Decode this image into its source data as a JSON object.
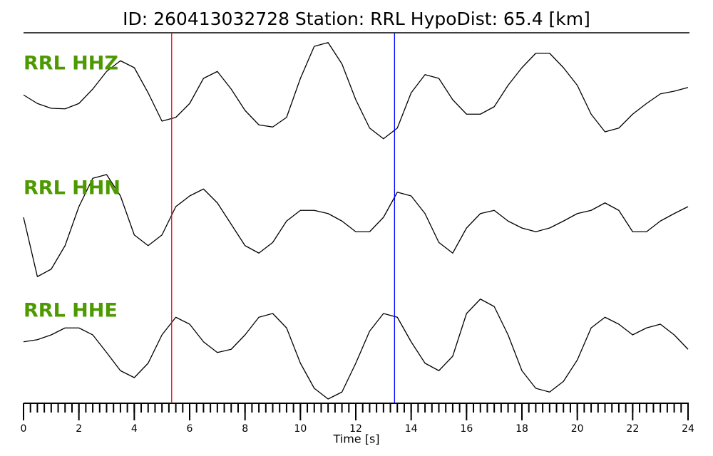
{
  "chart_data": {
    "type": "line",
    "title": "ID: 260413032728   Station: RRL   HypoDist:    65.4 [km]",
    "xlabel": "Time [s]",
    "xlim": [
      0,
      24
    ],
    "xticks": [
      0,
      2,
      4,
      6,
      8,
      10,
      12,
      14,
      16,
      18,
      20,
      22,
      24
    ],
    "xminorticks": [
      0,
      0.25,
      0.5,
      0.75,
      1,
      1.25,
      1.5,
      1.75,
      2,
      2.25,
      2.5,
      2.75,
      3,
      3.25,
      3.5,
      3.75,
      4,
      4.25,
      4.5,
      4.75,
      5,
      5.25,
      5.5,
      5.75,
      6,
      6.25,
      6.5,
      6.75,
      7,
      7.25,
      7.5,
      7.75,
      8,
      8.25,
      8.5,
      8.75,
      9,
      9.25,
      9.5,
      9.75,
      10,
      10.25,
      10.5,
      10.75,
      11,
      11.25,
      11.5,
      11.75,
      12,
      12.25,
      12.5,
      12.75,
      13,
      13.25,
      13.5,
      13.75,
      14,
      14.25,
      14.5,
      14.75,
      15,
      15.25,
      15.5,
      15.75,
      16,
      16.25,
      16.5,
      16.75,
      17,
      17.25,
      17.5,
      17.75,
      18,
      18.25,
      18.5,
      18.75,
      19,
      19.25,
      19.5,
      19.75,
      20,
      20.25,
      20.5,
      20.75,
      21,
      21.25,
      21.5,
      21.75,
      22,
      22.25,
      22.5,
      22.75,
      23,
      23.25,
      23.5,
      23.75,
      24
    ],
    "ylim": [
      -1.2,
      1.2
    ],
    "label_color": "#4c9a00",
    "picks": [
      {
        "x": 5.35,
        "color": "#ff0000"
      },
      {
        "x": 13.4,
        "color": "#0000ff"
      }
    ],
    "x": [
      0,
      0.5,
      1,
      1.5,
      2,
      2.5,
      3,
      3.5,
      4,
      4.5,
      5,
      5.5,
      6,
      6.5,
      7,
      7.5,
      8,
      8.5,
      9,
      9.5,
      10,
      10.5,
      11,
      11.5,
      12,
      12.5,
      13,
      13.5,
      14,
      14.5,
      15,
      15.5,
      16,
      16.5,
      17,
      17.5,
      18,
      18.5,
      19,
      19.5,
      20,
      20.5,
      21,
      21.5,
      22,
      22.5,
      23,
      23.5,
      24
    ],
    "series": [
      {
        "name": "RRL HHZ",
        "color": "#000000",
        "values": [
          -0.11,
          -0.27,
          -0.36,
          -0.37,
          -0.27,
          0,
          0.33,
          0.53,
          0.4,
          -0.07,
          -0.6,
          -0.53,
          -0.27,
          0.2,
          0.33,
          0,
          -0.4,
          -0.67,
          -0.71,
          -0.53,
          0.2,
          0.8,
          0.87,
          0.47,
          -0.2,
          -0.73,
          -0.93,
          -0.73,
          -0.07,
          0.27,
          0.2,
          -0.2,
          -0.47,
          -0.47,
          -0.33,
          0.07,
          0.4,
          0.67,
          0.67,
          0.4,
          0.07,
          -0.47,
          -0.8,
          -0.73,
          -0.47,
          -0.27,
          -0.09,
          -0.04,
          0.03
        ]
      },
      {
        "name": "RRL HHN",
        "color": "#000000",
        "values": [
          0,
          -1.11,
          -0.97,
          -0.53,
          0.2,
          0.73,
          0.8,
          0.4,
          -0.33,
          -0.53,
          -0.33,
          0.2,
          0.4,
          0.53,
          0.27,
          -0.13,
          -0.53,
          -0.67,
          -0.47,
          -0.07,
          0.13,
          0.13,
          0.07,
          -0.07,
          -0.27,
          -0.27,
          0,
          0.47,
          0.4,
          0.07,
          -0.47,
          -0.67,
          -0.2,
          0.07,
          0.13,
          -0.07,
          -0.2,
          -0.27,
          -0.2,
          -0.07,
          0.07,
          0.13,
          0.27,
          0.13,
          -0.27,
          -0.27,
          -0.07,
          0.07,
          0.2
        ]
      },
      {
        "name": "RRL HHE",
        "color": "#000000",
        "values": [
          0.07,
          0.11,
          0.2,
          0.33,
          0.33,
          0.2,
          -0.13,
          -0.47,
          -0.6,
          -0.33,
          0.2,
          0.53,
          0.4,
          0.07,
          -0.13,
          -0.07,
          0.2,
          0.53,
          0.6,
          0.33,
          -0.33,
          -0.8,
          -1,
          -0.87,
          -0.33,
          0.27,
          0.6,
          0.53,
          0.07,
          -0.33,
          -0.47,
          -0.2,
          0.6,
          0.87,
          0.73,
          0.2,
          -0.47,
          -0.8,
          -0.87,
          -0.67,
          -0.27,
          0.33,
          0.53,
          0.4,
          0.2,
          0.33,
          0.4,
          0.2,
          -0.07
        ]
      }
    ]
  }
}
